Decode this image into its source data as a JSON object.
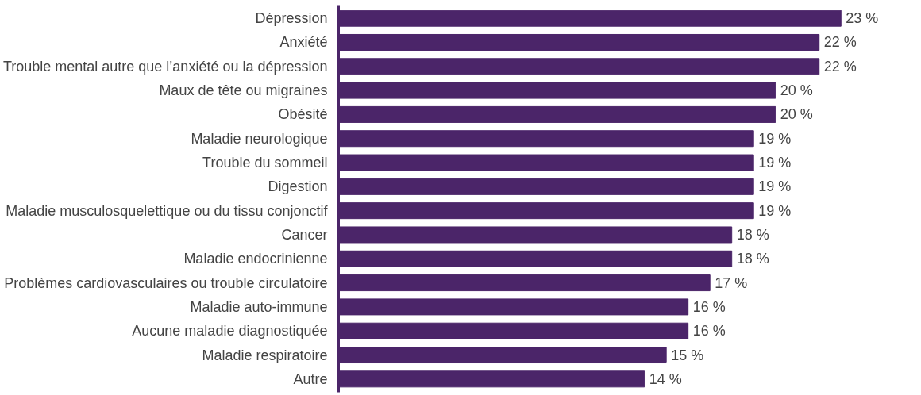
{
  "chart_data": {
    "type": "bar",
    "orientation": "horizontal",
    "categories": [
      "Dépression",
      "Anxiété",
      "Trouble mental autre que l’anxiété ou la dépression",
      "Maux de tête ou migraines",
      "Obésité",
      "Maladie neurologique",
      "Trouble du sommeil",
      "Digestion",
      "Maladie musculosquelettique ou du tissu conjonctif",
      "Cancer",
      "Maladie endocrinienne",
      "Problèmes cardiovasculaires ou trouble circulatoire",
      "Maladie auto-immune",
      "Aucune maladie diagnostiquée",
      "Maladie respiratoire",
      "Autre"
    ],
    "values": [
      23,
      22,
      22,
      20,
      20,
      19,
      19,
      19,
      19,
      18,
      18,
      17,
      16,
      16,
      15,
      14
    ],
    "value_labels": [
      "23 %",
      "22 %",
      "22 %",
      "20 %",
      "20 %",
      "19 %",
      "19 %",
      "19 %",
      "19 %",
      "18 %",
      "18 %",
      "17 %",
      "16 %",
      "16 %",
      "15 %",
      "14 %"
    ],
    "color": "#4b2569",
    "grid": false
  }
}
